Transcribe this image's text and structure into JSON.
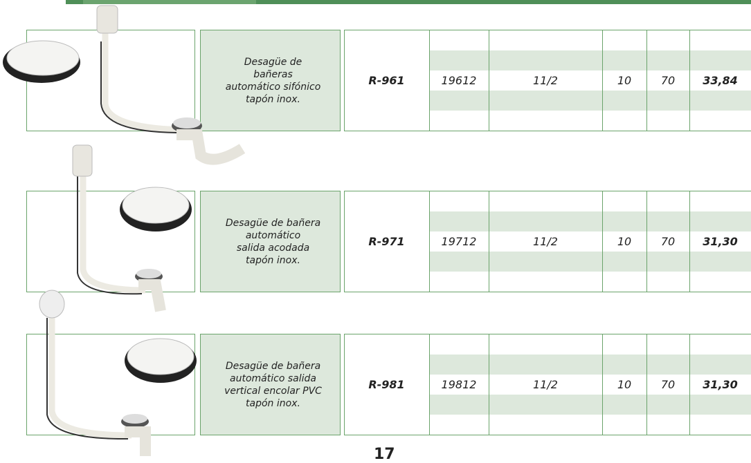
{
  "products": [
    {
      "description": [
        "Desagüe de",
        "bañeras",
        "automático sifónico",
        "tapón inox."
      ],
      "reference": "R-961",
      "code": 19612,
      "measure": "11/2",
      "units": 10,
      "box": 70,
      "price": "33,84"
    },
    {
      "description": [
        "Desagüe de bañera",
        "automático",
        "salida acodada",
        "tapón inox."
      ],
      "reference": "R-971",
      "code": 19712,
      "measure": "11/2",
      "units": 10,
      "box": 70,
      "price": "31,30"
    },
    {
      "description": [
        "Desagüe de bañera",
        "automático salida",
        "vertical encolar PVC",
        "tapón inox."
      ],
      "reference": "R-981",
      "code": 19812,
      "measure": "11/2",
      "units": 10,
      "box": 70,
      "price": "31,30"
    }
  ],
  "page_number": "17"
}
